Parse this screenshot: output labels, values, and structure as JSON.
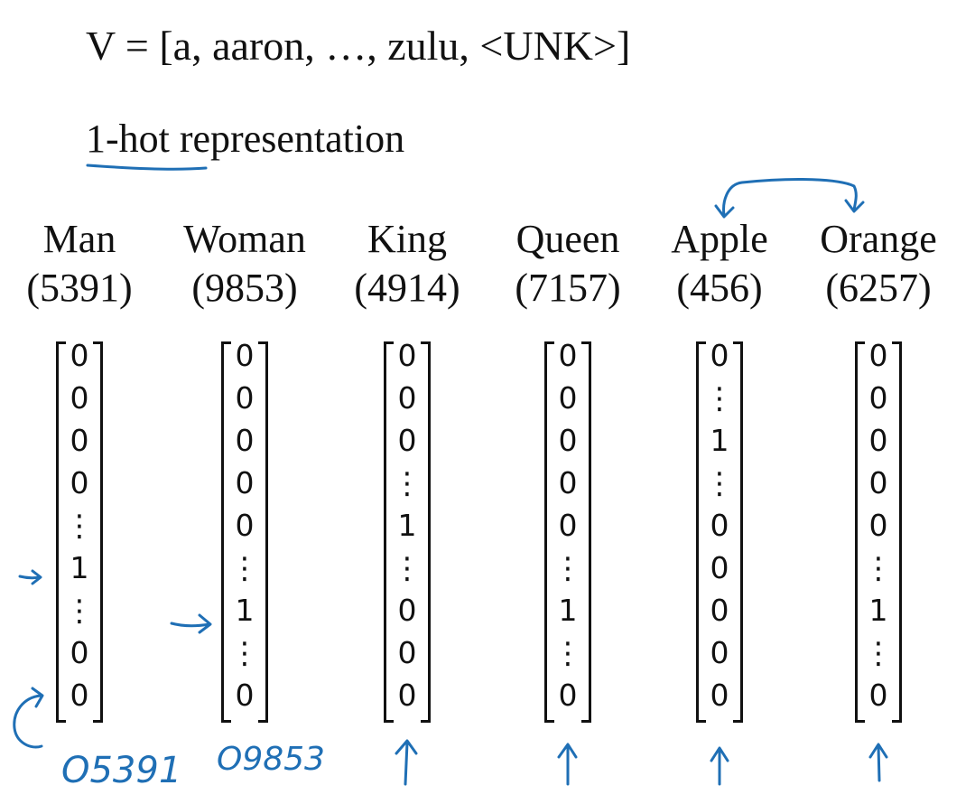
{
  "vocabulary": {
    "text": "V = [a, aaron, …, zulu, <UNK>]"
  },
  "subtitle": {
    "text": "1-hot representation"
  },
  "columns": [
    {
      "word": "Man",
      "index": "(5391)",
      "cells": [
        "0",
        "0",
        "0",
        "0",
        "⋮",
        "1",
        "⋮",
        "0",
        "0"
      ]
    },
    {
      "word": "Woman",
      "index": "(9853)",
      "cells": [
        "0",
        "0",
        "0",
        "0",
        "0",
        "⋮",
        "1",
        "⋮",
        "0"
      ]
    },
    {
      "word": "King",
      "index": "(4914)",
      "cells": [
        "0",
        "0",
        "0",
        "⋮",
        "1",
        "⋮",
        "0",
        "0",
        "0"
      ]
    },
    {
      "word": "Queen",
      "index": "(7157)",
      "cells": [
        "0",
        "0",
        "0",
        "0",
        "0",
        "⋮",
        "1",
        "⋮",
        "0"
      ]
    },
    {
      "word": "Apple",
      "index": "(456)",
      "cells": [
        "0",
        "⋮",
        "1",
        "⋮",
        "0",
        "0",
        "0",
        "0",
        "0"
      ]
    },
    {
      "word": "Orange",
      "index": "(6257)",
      "cells": [
        "0",
        "0",
        "0",
        "0",
        "0",
        "⋮",
        "1",
        "⋮",
        "0"
      ]
    }
  ],
  "annotations": {
    "o5391": "O5391",
    "o9853": "O9853",
    "ink_color": "#1f6fb5"
  }
}
